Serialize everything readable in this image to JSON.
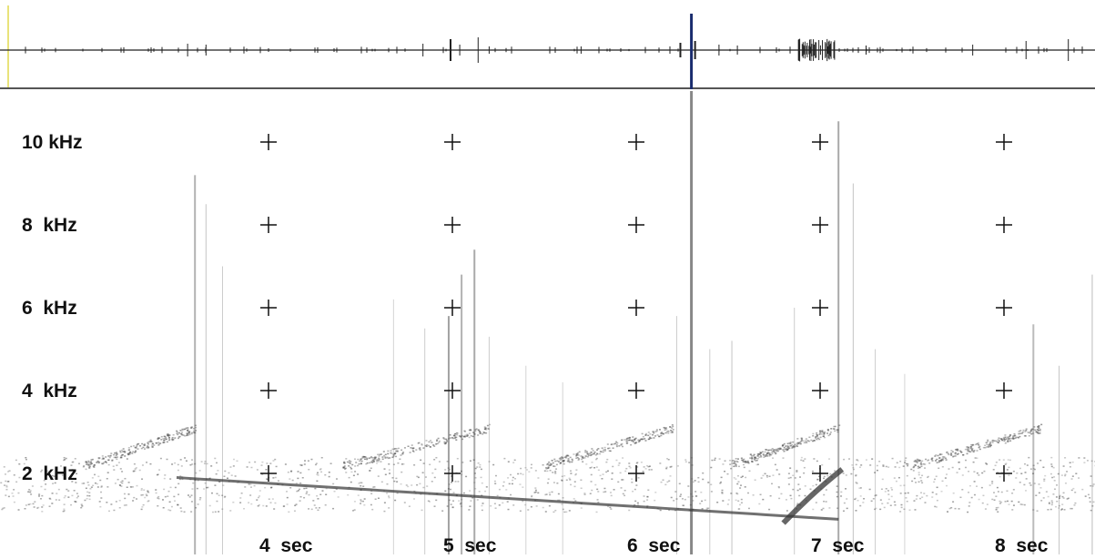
{
  "chart_data": {
    "type": "spectrogram",
    "frequency_labels": [
      {
        "value": 10,
        "label": "10 kHz"
      },
      {
        "value": 8,
        "label": "8  kHz"
      },
      {
        "value": 6,
        "label": "6  kHz"
      },
      {
        "value": 4,
        "label": "4  kHz"
      },
      {
        "value": 2,
        "label": "2  kHz"
      }
    ],
    "time_labels": [
      {
        "value": 4,
        "label": "4  sec"
      },
      {
        "value": 5,
        "label": "5  sec"
      },
      {
        "value": 6,
        "label": "6  sec"
      },
      {
        "value": 7,
        "label": "7  sec"
      },
      {
        "value": 8,
        "label": "8  sec"
      }
    ],
    "grid_times": [
      4,
      5,
      6,
      7,
      8
    ],
    "grid_frequencies": [
      10,
      8,
      6,
      4,
      2
    ],
    "xlim": [
      2.55,
      8.55
    ],
    "ylim": [
      0.3,
      11.1
    ],
    "cursor_time": 6.3,
    "colors": {
      "waveform": "#222222",
      "cursor": "#1a2c6e",
      "baseline_highlight": "#e9e37a",
      "spectro_ink": "#555555",
      "background": "#ffffff"
    }
  }
}
